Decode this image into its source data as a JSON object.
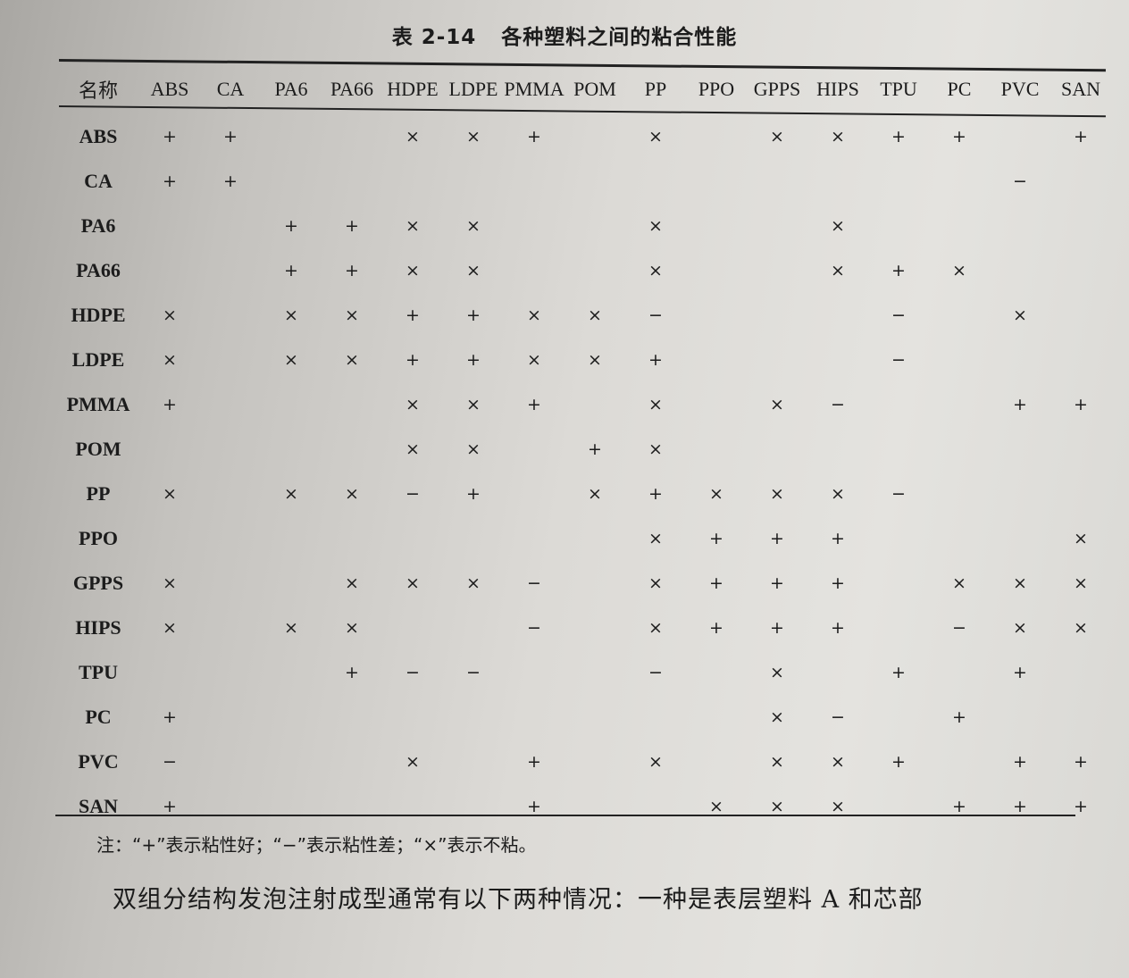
{
  "title": {
    "number": "表 2-14",
    "text": "各种塑料之间的粘合性能"
  },
  "table": {
    "headers": [
      "名称",
      "ABS",
      "CA",
      "PA6",
      "PA66",
      "HDPE",
      "LDPE",
      "PMMA",
      "POM",
      "PP",
      "PPO",
      "GPPS",
      "HIPS",
      "TPU",
      "PC",
      "PVC",
      "SAN"
    ],
    "rows": [
      {
        "name": "ABS",
        "cells": [
          "+",
          "+",
          "",
          "",
          "×",
          "×",
          "+",
          "",
          "×",
          "",
          "×",
          "×",
          "+",
          "+",
          "",
          "+"
        ]
      },
      {
        "name": "CA",
        "cells": [
          "+",
          "+",
          "",
          "",
          "",
          "",
          "",
          "",
          "",
          "",
          "",
          "",
          "",
          "",
          "−",
          ""
        ]
      },
      {
        "name": "PA6",
        "cells": [
          "",
          "",
          "+",
          "+",
          "×",
          "×",
          "",
          "",
          "×",
          "",
          "",
          "×",
          "",
          "",
          "",
          ""
        ]
      },
      {
        "name": "PA66",
        "cells": [
          "",
          "",
          "+",
          "+",
          "×",
          "×",
          "",
          "",
          "×",
          "",
          "",
          "×",
          "+",
          "×",
          "",
          ""
        ]
      },
      {
        "name": "HDPE",
        "cells": [
          "×",
          "",
          "×",
          "×",
          "+",
          "+",
          "×",
          "×",
          "−",
          "",
          "",
          "",
          "−",
          "",
          "×",
          ""
        ]
      },
      {
        "name": "LDPE",
        "cells": [
          "×",
          "",
          "×",
          "×",
          "+",
          "+",
          "×",
          "×",
          "+",
          "",
          "",
          "",
          "−",
          "",
          "",
          ""
        ]
      },
      {
        "name": "PMMA",
        "cells": [
          "+",
          "",
          "",
          "",
          "×",
          "×",
          "+",
          "",
          "×",
          "",
          "×",
          "−",
          "",
          "",
          "+",
          "+"
        ]
      },
      {
        "name": "POM",
        "cells": [
          "",
          "",
          "",
          "",
          "×",
          "×",
          "",
          "+",
          "×",
          "",
          "",
          "",
          "",
          "",
          "",
          ""
        ]
      },
      {
        "name": "PP",
        "cells": [
          "×",
          "",
          "×",
          "×",
          "−",
          "+",
          "",
          "×",
          "+",
          "×",
          "×",
          "×",
          "−",
          "",
          "",
          ""
        ]
      },
      {
        "name": "PPO",
        "cells": [
          "",
          "",
          "",
          "",
          "",
          "",
          "",
          "",
          "×",
          "+",
          "+",
          "+",
          "",
          "",
          "",
          "×"
        ]
      },
      {
        "name": "GPPS",
        "cells": [
          "×",
          "",
          "",
          "×",
          "×",
          "×",
          "−",
          "",
          "×",
          "+",
          "+",
          "+",
          "",
          "×",
          "×",
          "×"
        ]
      },
      {
        "name": "HIPS",
        "cells": [
          "×",
          "",
          "×",
          "×",
          "",
          "",
          "−",
          "",
          "×",
          "+",
          "+",
          "+",
          "",
          "−",
          "×",
          "×"
        ]
      },
      {
        "name": "TPU",
        "cells": [
          "",
          "",
          "",
          "+",
          "−",
          "−",
          "",
          "",
          "−",
          "",
          "×",
          "",
          "+",
          "",
          "+",
          ""
        ]
      },
      {
        "name": "PC",
        "cells": [
          "+",
          "",
          "",
          "",
          "",
          "",
          "",
          "",
          "",
          "",
          "×",
          "−",
          "",
          "+",
          "",
          ""
        ]
      },
      {
        "name": "PVC",
        "cells": [
          "−",
          "",
          "",
          "",
          "×",
          "",
          "+",
          "",
          "×",
          "",
          "×",
          "×",
          "+",
          "",
          "+",
          "+"
        ]
      },
      {
        "name": "SAN",
        "cells": [
          "+",
          "",
          "",
          "",
          "",
          "",
          "+",
          "",
          "",
          "×",
          "×",
          "×",
          "",
          "+",
          "+",
          "+"
        ]
      }
    ]
  },
  "note": "注：“+”表示粘性好；“−”表示粘性差；“×”表示不粘。",
  "body_text": "双组分结构发泡注射成型通常有以下两种情况：一种是表层塑料 A 和芯部"
}
